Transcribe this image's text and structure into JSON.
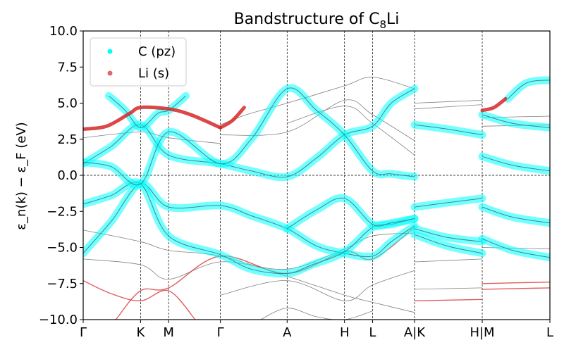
{
  "chart_data": {
    "type": "line",
    "title": "Bandstructure of C",
    "title_subscript": "8",
    "title_suffix": "Li",
    "ylabel": "ε_n(k) − ε_F (eV)",
    "ylim": [
      -10,
      10
    ],
    "yticks": [
      -10.0,
      -7.5,
      -5.0,
      -2.5,
      0.0,
      2.5,
      5.0,
      7.5,
      10.0
    ],
    "ytick_labels": [
      "−10.0",
      "−7.5",
      "−5.0",
      "−2.5",
      "0.0",
      "2.5",
      "5.0",
      "7.5",
      "10.0"
    ],
    "xlim": [
      0,
      10
    ],
    "kpoints": [
      {
        "label": "Γ",
        "x": 0.0
      },
      {
        "label": "K",
        "x": 1.23
      },
      {
        "label": "M",
        "x": 1.83
      },
      {
        "label": "Γ",
        "x": 2.94
      },
      {
        "label": "A",
        "x": 4.37
      },
      {
        "label": "H",
        "x": 5.6
      },
      {
        "label": "L",
        "x": 6.2
      },
      {
        "label": "A|K",
        "x": 7.1
      },
      {
        "label": "H|M",
        "x": 8.55
      },
      {
        "label": "L",
        "x": 10.0
      }
    ],
    "fermi_level": 0.0,
    "grid": "vertical dashed at k-points, horizontal dashed at ε_F",
    "legend_position": "top-left",
    "legend": [
      {
        "name": "C (pz)",
        "color": "#00ffff"
      },
      {
        "name": "Li (s)",
        "color": "#d62728"
      }
    ],
    "series": [
      {
        "name": "C (pz)",
        "color": "#00ffff",
        "weight": "heavy",
        "x": [
          0,
          0.6,
          1.23,
          1.83,
          2.94,
          3.6,
          4.37,
          5.0,
          5.6,
          6.2,
          6.6,
          7.1
        ],
        "y": [
          -5.4,
          -3.2,
          -0.6,
          -2.2,
          -2.1,
          -2.8,
          -3.7,
          -4.9,
          -5.4,
          -5.6,
          -4.6,
          -3.5
        ]
      },
      {
        "name": "C (pz)",
        "color": "#00ffff",
        "weight": "heavy",
        "x": [
          0,
          0.6,
          1.23,
          1.83,
          2.94,
          3.6,
          4.37,
          4.9,
          5.6,
          6.2,
          6.6,
          7.1
        ],
        "y": [
          -2.0,
          -1.4,
          -0.6,
          -4.2,
          -5.5,
          -6.5,
          -6.8,
          -6.2,
          -5.3,
          -3.6,
          -3.4,
          -3.0
        ]
      },
      {
        "name": "C (pz)",
        "color": "#00ffff",
        "weight": "heavy",
        "x": [
          0,
          0.6,
          1.23,
          1.83,
          2.94,
          3.6,
          4.37,
          5.0,
          5.6,
          6.2,
          6.6,
          7.1
        ],
        "y": [
          0.8,
          2.0,
          3.5,
          1.4,
          0.8,
          0.3,
          -0.1,
          1.2,
          2.8,
          3.4,
          5.0,
          6.0
        ]
      },
      {
        "name": "C (pz)",
        "color": "#00ffff",
        "weight": "heavy",
        "x": [
          0,
          0.6,
          1.23,
          1.83,
          2.94,
          3.6,
          4.37,
          5.0,
          5.6,
          6.2,
          6.6,
          7.1
        ],
        "y": [
          0.9,
          0.6,
          -0.6,
          3.0,
          0.8,
          2.5,
          6.0,
          4.5,
          2.8,
          0.3,
          0.1,
          -0.1
        ]
      },
      {
        "name": "C (pz)",
        "color": "#00ffff",
        "weight": "heavy",
        "x": [
          0.55,
          0.9,
          1.23,
          1.6,
          1.83,
          2.2
        ],
        "y": [
          5.5,
          4.5,
          3.3,
          4.3,
          4.5,
          5.5
        ]
      },
      {
        "name": "C (pz)",
        "color": "#00ffff",
        "weight": "heavy",
        "x": [
          4.37,
          5.0,
          5.6,
          6.2,
          6.6,
          7.1
        ],
        "y": [
          -3.7,
          -2.4,
          -1.6,
          -3.4,
          -3.3,
          -3.0
        ]
      },
      {
        "name": "C (pz)",
        "color": "#00ffff",
        "weight": "heavy",
        "x": [
          7.1,
          7.8,
          8.55
        ],
        "y": [
          3.5,
          3.2,
          2.8
        ]
      },
      {
        "name": "C (pz)",
        "color": "#00ffff",
        "weight": "heavy",
        "x": [
          7.1,
          7.8,
          8.55
        ],
        "y": [
          -2.2,
          -1.9,
          -1.6
        ]
      },
      {
        "name": "C (pz)",
        "color": "#00ffff",
        "weight": "heavy",
        "x": [
          7.1,
          7.8,
          8.55
        ],
        "y": [
          -4.1,
          -4.9,
          -5.4
        ]
      },
      {
        "name": "C (pz)",
        "color": "#00ffff",
        "weight": "heavy",
        "x": [
          7.1,
          7.8,
          8.55
        ],
        "y": [
          -3.7,
          -4.3,
          -4.6
        ]
      },
      {
        "name": "C (pz)",
        "color": "#00ffff",
        "weight": "heavy",
        "x": [
          8.55,
          9.2,
          10.0
        ],
        "y": [
          4.2,
          3.6,
          3.3
        ]
      },
      {
        "name": "C (pz)",
        "color": "#00ffff",
        "weight": "heavy",
        "x": [
          8.55,
          9.2,
          10.0
        ],
        "y": [
          1.3,
          0.7,
          0.3
        ]
      },
      {
        "name": "C (pz)",
        "color": "#00ffff",
        "weight": "heavy",
        "x": [
          8.55,
          9.2,
          10.0
        ],
        "y": [
          -2.2,
          -2.9,
          -3.3
        ]
      },
      {
        "name": "C (pz)",
        "color": "#00ffff",
        "weight": "heavy",
        "x": [
          8.55,
          9.2,
          10.0
        ],
        "y": [
          -4.4,
          -5.2,
          -5.7
        ]
      },
      {
        "name": "C (pz)",
        "color": "#00ffff",
        "weight": "heavy",
        "x": [
          9.1,
          9.5,
          10.0
        ],
        "y": [
          5.3,
          6.4,
          6.6
        ]
      },
      {
        "name": "Li (s)",
        "color": "#d62728",
        "weight": "heavy",
        "x": [
          0,
          0.5,
          1.0,
          1.23,
          1.83,
          2.3,
          2.94
        ],
        "y": [
          3.2,
          3.4,
          4.3,
          4.7,
          4.6,
          4.2,
          3.3
        ]
      },
      {
        "name": "Li (s)",
        "color": "#d62728",
        "weight": "heavy",
        "x": [
          2.94,
          3.2,
          3.45
        ],
        "y": [
          3.3,
          3.8,
          4.7
        ]
      },
      {
        "name": "Li (s)",
        "color": "#d62728",
        "weight": "heavy",
        "x": [
          8.55,
          8.8,
          9.05
        ],
        "y": [
          4.5,
          4.7,
          5.3
        ]
      },
      {
        "name": "Li (s)",
        "color": "#d62728",
        "weight": "light",
        "x": [
          0,
          0.6,
          1.23,
          1.83,
          2.4
        ],
        "y": [
          -7.3,
          -8.2,
          -8.7,
          -8.0,
          -10.0
        ]
      },
      {
        "name": "Li (s)",
        "color": "#d62728",
        "weight": "light",
        "x": [
          0.7,
          1.23,
          1.83,
          2.94,
          4.37,
          5.6,
          6.2,
          7.1
        ],
        "y": [
          -10.0,
          -8.0,
          -7.8,
          -5.6,
          -6.8,
          -5.3,
          -5.8,
          -3.6
        ]
      },
      {
        "name": "Li (s)",
        "color": "#d62728",
        "weight": "light",
        "x": [
          7.1,
          8.55
        ],
        "y": [
          -8.7,
          -8.6
        ]
      },
      {
        "name": "Li (s)",
        "color": "#d62728",
        "weight": "light",
        "x": [
          8.55,
          10.0
        ],
        "y": [
          -7.5,
          -7.4
        ]
      },
      {
        "name": "Li (s)",
        "color": "#d62728",
        "weight": "light",
        "x": [
          8.55,
          10.0
        ],
        "y": [
          -7.9,
          -7.8
        ]
      }
    ],
    "background_bands": [
      {
        "x": [
          0,
          1.23,
          1.83,
          2.94,
          4.37,
          5.6,
          6.2,
          7.1
        ],
        "y": [
          -3.8,
          -4.6,
          -5.2,
          -5.6,
          -7.0,
          -8.3,
          -8.8,
          -9.5
        ]
      },
      {
        "x": [
          0,
          1.23,
          1.83,
          2.94,
          4.37,
          5.6,
          6.2,
          7.1
        ],
        "y": [
          -5.8,
          -6.2,
          -7.2,
          -6.0,
          -6.5,
          -5.1,
          -4.2,
          -4.0
        ]
      },
      {
        "x": [
          2.94,
          4.37,
          5.6,
          6.2,
          7.1
        ],
        "y": [
          -8.3,
          -7.3,
          -8.7,
          -7.6,
          -6.6
        ]
      },
      {
        "x": [
          3.8,
          4.37,
          5.0,
          5.6,
          6.2
        ],
        "y": [
          -10.0,
          -9.2,
          -9.8,
          -10.0,
          -9.4
        ]
      },
      {
        "x": [
          2.94,
          3.5,
          4.37,
          5.6,
          6.2,
          7.1
        ],
        "y": [
          3.5,
          4.2,
          5.0,
          6.2,
          6.8,
          6.0
        ]
      },
      {
        "x": [
          2.94,
          4.37,
          5.6,
          6.2,
          7.1
        ],
        "y": [
          2.8,
          3.0,
          5.2,
          4.2,
          2.4
        ]
      },
      {
        "x": [
          4.37,
          5.6,
          6.2,
          7.1
        ],
        "y": [
          3.6,
          4.8,
          3.6,
          1.4
        ]
      },
      {
        "x": [
          0,
          1.23,
          1.83,
          2.94
        ],
        "y": [
          2.6,
          3.0,
          2.6,
          2.2
        ]
      },
      {
        "x": [
          7.1,
          8.55
        ],
        "y": [
          4.6,
          4.9
        ]
      },
      {
        "x": [
          7.1,
          8.55
        ],
        "y": [
          5.0,
          5.2
        ]
      },
      {
        "x": [
          8.55,
          10.0
        ],
        "y": [
          4.0,
          4.1
        ]
      },
      {
        "x": [
          8.55,
          10.0
        ],
        "y": [
          3.4,
          3.5
        ]
      },
      {
        "x": [
          8.55,
          10.0
        ],
        "y": [
          -5.0,
          -5.1
        ]
      },
      {
        "x": [
          7.1,
          8.55
        ],
        "y": [
          -7.9,
          -7.8
        ]
      },
      {
        "x": [
          7.1,
          8.55
        ],
        "y": [
          -6.0,
          -5.8
        ]
      }
    ]
  }
}
